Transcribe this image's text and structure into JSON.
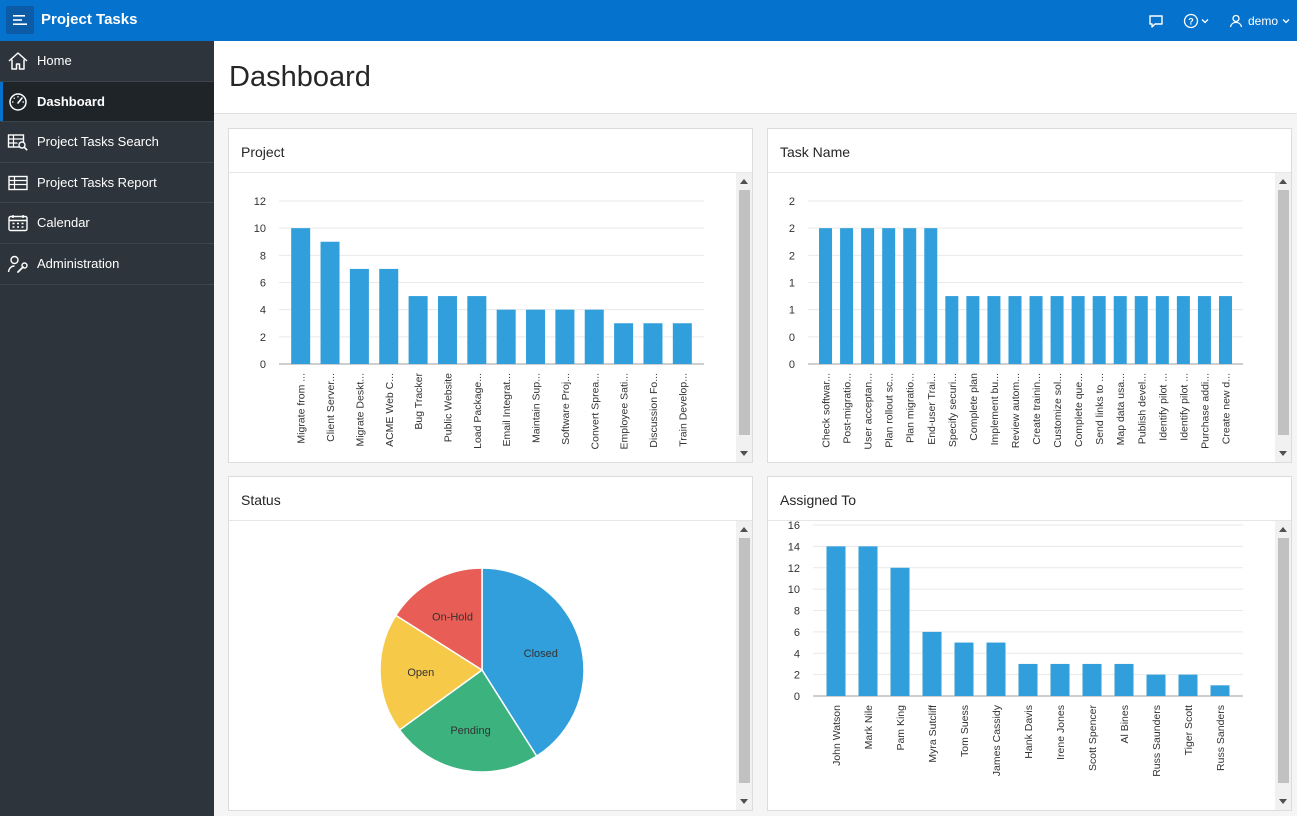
{
  "app": {
    "title": "Project Tasks",
    "user": "demo"
  },
  "sidebar": {
    "items": [
      {
        "label": "Home",
        "icon": "home-icon"
      },
      {
        "label": "Dashboard",
        "icon": "gauge-icon",
        "active": true
      },
      {
        "label": "Project Tasks Search",
        "icon": "table-search-icon"
      },
      {
        "label": "Project Tasks Report",
        "icon": "table-icon"
      },
      {
        "label": "Calendar",
        "icon": "calendar-icon"
      },
      {
        "label": "Administration",
        "icon": "user-wrench-icon"
      }
    ]
  },
  "page": {
    "title": "Dashboard"
  },
  "colors": {
    "bar": "#309fdb",
    "header": "#0572ce",
    "sidebar": "#2d343b",
    "closed": "#309fdb",
    "pending": "#3cb27e",
    "open": "#f7c948",
    "onhold": "#e85d55"
  },
  "cards": {
    "project": {
      "title": "Project"
    },
    "task": {
      "title": "Task Name"
    },
    "status": {
      "title": "Status"
    },
    "assigned": {
      "title": "Assigned To"
    }
  },
  "chart_data": [
    {
      "id": "project",
      "type": "bar",
      "title": "Project",
      "categories": [
        "Migrate from ...",
        "Client Server...",
        "Migrate Deskt...",
        "ACME Web C...",
        "Bug Tracker",
        "Public Website",
        "Load Package...",
        "Email Integrat...",
        "Maintain Sup...",
        "Software Proj...",
        "Convert Sprea...",
        "Employee Sati...",
        "Discussion Fo...",
        "Train Develop..."
      ],
      "values": [
        10,
        9,
        7,
        7,
        5,
        5,
        5,
        4,
        4,
        4,
        4,
        3,
        3,
        3
      ],
      "yticks": [
        "0",
        "2",
        "4",
        "6",
        "8",
        "10",
        "12"
      ],
      "ylim": [
        0,
        12
      ]
    },
    {
      "id": "task",
      "type": "bar",
      "title": "Task Name",
      "categories": [
        "Check softwar...",
        "Post-migratio...",
        "User acceptan...",
        "Plan rollout sc...",
        "Plan migratio...",
        "End-user Trai...",
        "Specify securi...",
        "Complete plan",
        "Implement bu...",
        "Review autom...",
        "Create trainin...",
        "Customize sol...",
        "Complete que...",
        "Send links to ...",
        "Map data usa...",
        "Publish devel...",
        "Identify pilot ...",
        "Identify pilot ...",
        "Purchase addi...",
        "Create new d..."
      ],
      "values": [
        2,
        2,
        2,
        2,
        2,
        2,
        1,
        1,
        1,
        1,
        1,
        1,
        1,
        1,
        1,
        1,
        1,
        1,
        1,
        1
      ],
      "yticks": [
        "0",
        "0",
        "1",
        "1",
        "2",
        "2",
        "2"
      ],
      "ylim": [
        0,
        2.4
      ]
    },
    {
      "id": "status",
      "type": "pie",
      "title": "Status",
      "slices": [
        {
          "label": "Closed",
          "value": 41,
          "color": "#309fdb"
        },
        {
          "label": "Pending",
          "value": 24,
          "color": "#3cb27e"
        },
        {
          "label": "Open",
          "value": 19,
          "color": "#f7c948"
        },
        {
          "label": "On-Hold",
          "value": 16,
          "color": "#e85d55"
        }
      ]
    },
    {
      "id": "assigned",
      "type": "bar",
      "title": "Assigned To",
      "categories": [
        "John Watson",
        "Mark Nile",
        "Pam King",
        "Myra Sutcliff",
        "Tom Suess",
        "James Cassidy",
        "Hank Davis",
        "Irene Jones",
        "Scott Spencer",
        "Al Bines",
        "Russ Saunders",
        "Tiger Scott",
        "Russ Sanders"
      ],
      "values": [
        14,
        14,
        12,
        6,
        5,
        5,
        3,
        3,
        3,
        3,
        2,
        2,
        1
      ],
      "yticks": [
        "0",
        "2",
        "4",
        "6",
        "8",
        "10",
        "12",
        "14",
        "16"
      ],
      "ylim": [
        0,
        16
      ]
    }
  ]
}
